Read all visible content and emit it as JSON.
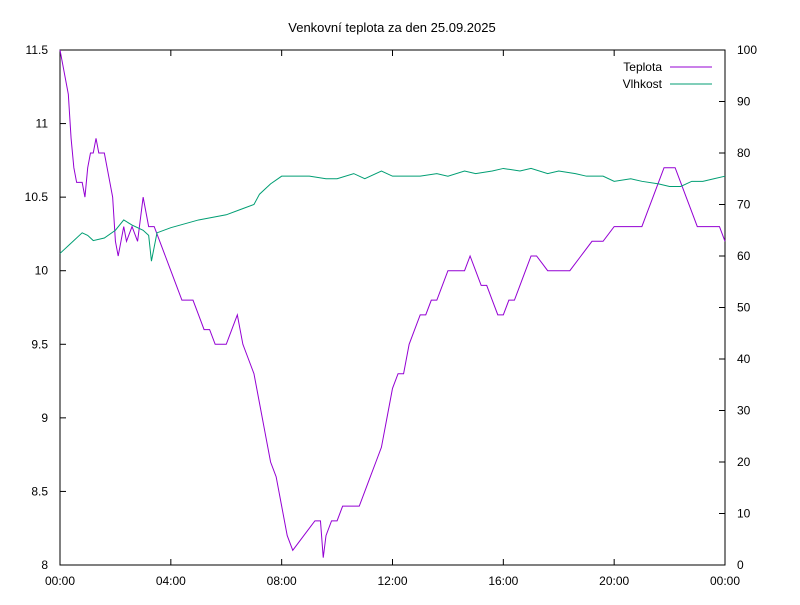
{
  "chart_data": {
    "type": "line",
    "title": "Venkovní teplota za den 25.09.2025",
    "xlabel": "",
    "ylabel": "",
    "y2label": "",
    "x_unit": "hours",
    "xlim": [
      0,
      24
    ],
    "x_ticks": [
      0,
      4,
      8,
      12,
      16,
      20,
      24
    ],
    "x_tick_labels": [
      "00:00",
      "04:00",
      "08:00",
      "12:00",
      "16:00",
      "20:00",
      "00:00"
    ],
    "ylim": [
      8,
      11.5
    ],
    "y_ticks": [
      8,
      8.5,
      9,
      9.5,
      10,
      10.5,
      11,
      11.5
    ],
    "y_tick_labels": [
      "8",
      "8.5",
      "9",
      "9.5",
      "10",
      "10.5",
      "11",
      "11.5"
    ],
    "y2lim": [
      0,
      100
    ],
    "y2_ticks": [
      0,
      10,
      20,
      30,
      40,
      50,
      60,
      70,
      80,
      90,
      100
    ],
    "y2_tick_labels": [
      "0",
      "10",
      "20",
      "30",
      "40",
      "50",
      "60",
      "70",
      "80",
      "90",
      "100"
    ],
    "grid": false,
    "legend_position": "top-right",
    "series": [
      {
        "name": "Teplota",
        "axis": "left",
        "color": "#9400d3",
        "x": [
          0,
          0.1,
          0.2,
          0.3,
          0.4,
          0.5,
          0.6,
          0.7,
          0.8,
          0.9,
          1.0,
          1.1,
          1.2,
          1.3,
          1.4,
          1.5,
          1.6,
          1.7,
          1.8,
          1.9,
          2.0,
          2.1,
          2.2,
          2.3,
          2.4,
          2.6,
          2.8,
          3.0,
          3.1,
          3.2,
          3.3,
          3.4,
          3.6,
          3.8,
          4.0,
          4.2,
          4.4,
          4.6,
          4.8,
          5.0,
          5.2,
          5.4,
          5.6,
          5.8,
          6.0,
          6.2,
          6.4,
          6.6,
          6.8,
          7.0,
          7.2,
          7.4,
          7.6,
          7.8,
          8.0,
          8.2,
          8.4,
          8.6,
          8.8,
          9.0,
          9.2,
          9.4,
          9.5,
          9.6,
          9.8,
          10.0,
          10.2,
          10.4,
          10.6,
          10.8,
          11.0,
          11.2,
          11.4,
          11.6,
          11.8,
          12.0,
          12.2,
          12.4,
          12.6,
          12.8,
          13.0,
          13.2,
          13.4,
          13.6,
          13.8,
          14.0,
          14.2,
          14.4,
          14.6,
          14.8,
          15.0,
          15.2,
          15.4,
          15.6,
          15.8,
          16.0,
          16.2,
          16.4,
          16.6,
          16.8,
          17.0,
          17.2,
          17.4,
          17.6,
          17.8,
          18.0,
          18.4,
          18.8,
          19.2,
          19.6,
          20.0,
          20.2,
          20.4,
          20.6,
          20.8,
          21.0,
          21.2,
          21.4,
          21.6,
          21.8,
          22.0,
          22.2,
          22.4,
          22.6,
          22.8,
          23.0,
          23.2,
          23.4,
          23.6,
          23.8,
          24.0
        ],
        "values": [
          11.5,
          11.4,
          11.3,
          11.2,
          10.9,
          10.7,
          10.6,
          10.6,
          10.6,
          10.5,
          10.7,
          10.8,
          10.8,
          10.9,
          10.8,
          10.8,
          10.8,
          10.7,
          10.6,
          10.5,
          10.2,
          10.1,
          10.2,
          10.3,
          10.2,
          10.3,
          10.2,
          10.5,
          10.4,
          10.3,
          10.3,
          10.3,
          10.2,
          10.1,
          10.0,
          9.9,
          9.8,
          9.8,
          9.8,
          9.7,
          9.6,
          9.6,
          9.5,
          9.5,
          9.5,
          9.6,
          9.7,
          9.5,
          9.4,
          9.3,
          9.1,
          8.9,
          8.7,
          8.6,
          8.4,
          8.2,
          8.1,
          8.15,
          8.2,
          8.25,
          8.3,
          8.3,
          8.05,
          8.2,
          8.3,
          8.3,
          8.4,
          8.4,
          8.4,
          8.4,
          8.5,
          8.6,
          8.7,
          8.8,
          9.0,
          9.2,
          9.3,
          9.3,
          9.5,
          9.6,
          9.7,
          9.7,
          9.8,
          9.8,
          9.9,
          10.0,
          10.0,
          10.0,
          10.0,
          10.1,
          10.0,
          9.9,
          9.9,
          9.8,
          9.7,
          9.7,
          9.8,
          9.8,
          9.9,
          10.0,
          10.1,
          10.1,
          10.05,
          10.0,
          10.0,
          10.0,
          10.0,
          10.1,
          10.2,
          10.2,
          10.3,
          10.3,
          10.3,
          10.3,
          10.3,
          10.3,
          10.4,
          10.5,
          10.6,
          10.7,
          10.7,
          10.7,
          10.6,
          10.5,
          10.4,
          10.3,
          10.3,
          10.3,
          10.3,
          10.3,
          10.2
        ]
      },
      {
        "name": "Vlhkost",
        "axis": "right",
        "color": "#009e73",
        "x": [
          0,
          0.4,
          0.8,
          1.0,
          1.2,
          1.6,
          2.0,
          2.3,
          2.6,
          3.0,
          3.2,
          3.3,
          3.5,
          4.0,
          5.0,
          6.0,
          6.5,
          7.0,
          7.2,
          7.6,
          8.0,
          8.4,
          9.0,
          9.6,
          10.0,
          10.6,
          11.0,
          11.6,
          12.0,
          12.6,
          13.0,
          13.6,
          14.0,
          14.6,
          15.0,
          15.6,
          16.0,
          16.6,
          17.0,
          17.6,
          18.0,
          18.6,
          19.0,
          19.6,
          20.0,
          20.6,
          21.0,
          21.6,
          22.0,
          22.4,
          22.8,
          23.2,
          23.6,
          24.0
        ],
        "values": [
          60.5,
          62.5,
          64.5,
          64.0,
          63.0,
          63.5,
          65.0,
          67.0,
          66.0,
          65.0,
          64.0,
          59.0,
          64.5,
          65.5,
          67.0,
          68.0,
          69.0,
          70.0,
          72.0,
          74.0,
          75.5,
          75.5,
          75.5,
          75.0,
          75.0,
          76.0,
          75.0,
          76.5,
          75.5,
          75.5,
          75.5,
          76.0,
          75.5,
          76.5,
          76.0,
          76.5,
          77.0,
          76.5,
          77.0,
          76.0,
          76.5,
          76.0,
          75.5,
          75.5,
          74.5,
          75.0,
          74.5,
          74.0,
          73.5,
          73.5,
          74.5,
          74.5,
          75.0,
          75.5
        ]
      }
    ]
  }
}
